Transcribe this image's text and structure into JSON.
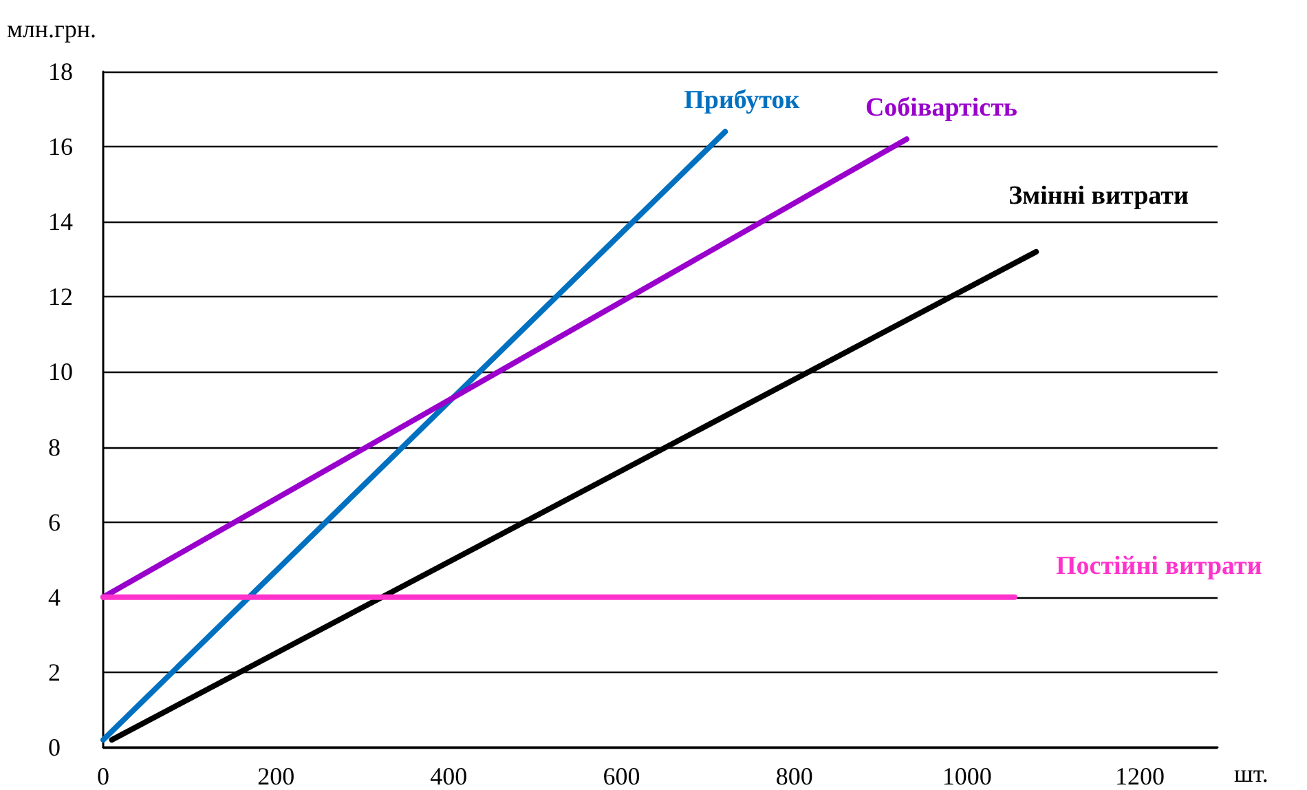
{
  "chart_data": {
    "type": "line",
    "xlabel": "шт.",
    "ylabel": "млн.грн.",
    "series": [
      {
        "name": "Прибуток",
        "color": "#0070c0",
        "x": [
          0,
          720
        ],
        "values": [
          0.2,
          16.4
        ]
      },
      {
        "name": "Собівартість",
        "color": "#9900cc",
        "x": [
          0,
          930
        ],
        "values": [
          4,
          16.2
        ]
      },
      {
        "name": "Змінні витрати",
        "color": "#000000",
        "x": [
          10,
          1080
        ],
        "values": [
          0.2,
          13.2
        ]
      },
      {
        "name": "Постійні витрати",
        "color": "#ff33cc",
        "x": [
          0,
          1055
        ],
        "values": [
          4,
          4
        ]
      }
    ],
    "xlim": [
      0,
      1290
    ],
    "xticks": [
      0,
      200,
      400,
      600,
      800,
      1000,
      1200
    ],
    "ylim": [
      0,
      18
    ],
    "yticks": [
      0,
      2,
      4,
      6,
      8,
      10,
      12,
      14,
      16,
      18
    ],
    "grid": "y",
    "legend": false,
    "marker": "none",
    "line_style": "solid"
  }
}
